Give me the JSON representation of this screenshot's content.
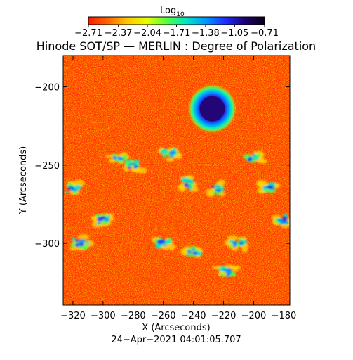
{
  "colorbar": {
    "label": "Log",
    "label_subscript": "10",
    "ticks": [
      "−2.71",
      "−2.37",
      "−2.04",
      "−1.71",
      "−1.38",
      "−1.05",
      "−0.71"
    ],
    "tick_values": [
      -2.71,
      -2.37,
      -2.04,
      -1.71,
      -1.38,
      -1.05,
      -0.71
    ],
    "colormap_stops": [
      "#ff1a00",
      "#ff6600",
      "#ffc800",
      "#e6ff00",
      "#55ff3c",
      "#00e6c8",
      "#0096ff",
      "#1e2dff",
      "#1e006e",
      "#0a0014"
    ]
  },
  "title": "Hinode SOT/SP — MERLIN : Degree of Polarization",
  "xaxis": {
    "label": "X (Arcseconds)",
    "tick_values": [
      -320,
      -300,
      -280,
      -260,
      -240,
      -220,
      -200,
      -180
    ],
    "tick_labels": [
      "−320",
      "−300",
      "−280",
      "−260",
      "−240",
      "−220",
      "−200",
      "−180"
    ],
    "range": [
      -326.5,
      -176
    ]
  },
  "yaxis": {
    "label": "Y (Arcseconds)",
    "tick_values": [
      -200,
      -250,
      -300
    ],
    "tick_labels": [
      "−200",
      "−250",
      "−300"
    ],
    "range": [
      -339.5,
      -180
    ]
  },
  "footer_timestamp": "24−Apr−2021 04:01:05.707",
  "image_features": {
    "background_level": "low polarization (red/orange)",
    "sunspot_center_arcsec": [
      -227.5,
      -214
    ],
    "network_patches_arcsec": [
      [
        -290,
        -245
      ],
      [
        -280,
        -250
      ],
      [
        -255,
        -243
      ],
      [
        -245,
        -262
      ],
      [
        -225,
        -265
      ],
      [
        -200,
        -245
      ],
      [
        -190,
        -265
      ],
      [
        -260,
        -300
      ],
      [
        -240,
        -305
      ],
      [
        -218,
        -318
      ],
      [
        -300,
        -285
      ],
      [
        -315,
        -300
      ],
      [
        -320,
        -265
      ],
      [
        -180,
        -285
      ],
      [
        -210,
        -300
      ]
    ]
  }
}
